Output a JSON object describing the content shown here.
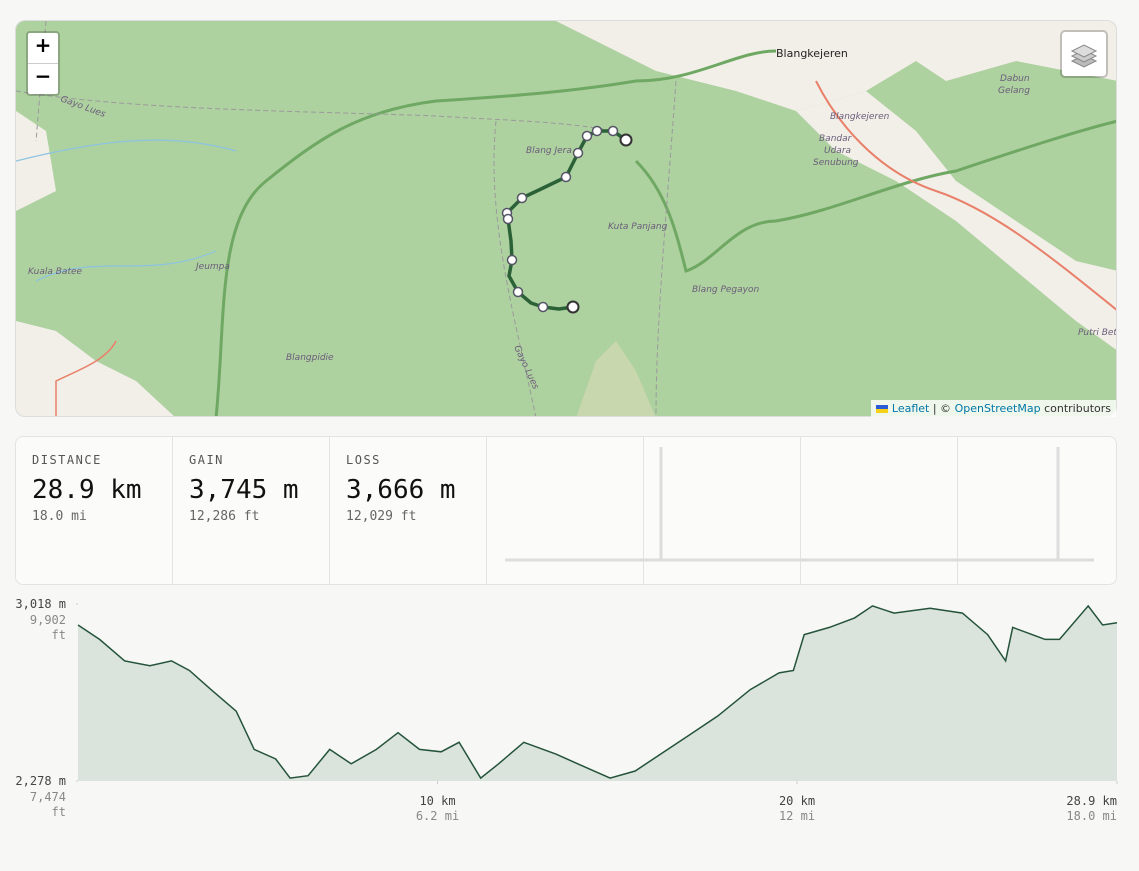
{
  "map": {
    "zoom_in": "+",
    "zoom_out": "−",
    "places": [
      "Blangkejeren",
      "Dabun",
      "Gelang",
      "Blangkejeren",
      "Bandar",
      "Udara",
      "Senubung",
      "Gayo Lues",
      "Blang Jera",
      "Kuta Panjang",
      "Kuala Batee",
      "Jeumpa",
      "Blang Pegayon",
      "Blangpidie",
      "Gayo Lues",
      "Putri Bet"
    ],
    "attribution": {
      "leaflet": "Leaflet",
      "sep": "| ©",
      "osm": "OpenStreetMap",
      "rest": "contributors"
    }
  },
  "stats": [
    {
      "label": "DISTANCE",
      "value": "28.9 km",
      "sub": "18.0 mi"
    },
    {
      "label": "GAIN",
      "value": "3,745 m",
      "sub": "12,286 ft"
    },
    {
      "label": "LOSS",
      "value": "3,666 m",
      "sub": "12,029 ft"
    }
  ],
  "elevation": {
    "x_km": [
      0,
      0.6,
      1.3,
      2.0,
      2.6,
      3.1,
      3.7,
      4.4,
      4.9,
      5.5,
      5.9,
      6.4,
      7.0,
      7.6,
      8.3,
      8.9,
      9.5,
      10.1,
      10.6,
      11.2,
      11.7,
      12.4,
      13.3,
      13.9,
      14.8,
      15.5,
      16.2,
      17.0,
      17.8,
      18.7,
      19.5,
      19.9,
      20.2,
      20.9,
      21.6,
      22.1,
      22.7,
      23.7,
      24.6,
      25.3,
      25.8,
      26.0,
      26.9,
      27.3,
      28.1,
      28.5,
      28.9
    ],
    "elev_m": [
      2930,
      2870,
      2780,
      2760,
      2780,
      2740,
      2660,
      2570,
      2410,
      2370,
      2290,
      2300,
      2410,
      2350,
      2410,
      2480,
      2410,
      2400,
      2440,
      2290,
      2350,
      2440,
      2390,
      2350,
      2290,
      2320,
      2390,
      2470,
      2550,
      2660,
      2730,
      2740,
      2890,
      2920,
      2960,
      3010,
      2980,
      3000,
      2980,
      2890,
      2780,
      2920,
      2870,
      2870,
      3010,
      2930,
      2940
    ],
    "xlim": [
      0,
      28.9
    ],
    "ylim": [
      2278,
      3018
    ],
    "ylabels": [
      {
        "value": 3018,
        "label": "3,018 m",
        "sub": "9,902",
        "unit": "ft"
      },
      {
        "value": 2278,
        "label": "2,278 m",
        "sub": "7,474",
        "unit": "ft"
      }
    ],
    "xticks": [
      {
        "value": 10,
        "label": "10 km",
        "sub": "6.2 mi"
      },
      {
        "value": 20,
        "label": "20 km",
        "sub": "12 mi"
      },
      {
        "value": 28.9,
        "label": "28.9 km",
        "sub": "18.0 mi"
      }
    ]
  }
}
